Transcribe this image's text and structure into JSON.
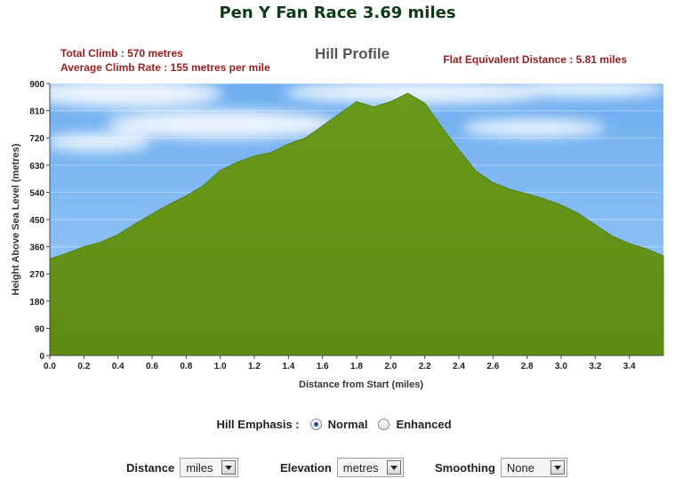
{
  "page_title": "Pen Y Fan Race 3.69 miles",
  "stats": {
    "total_climb": "Total Climb : 570 metres",
    "average_climb_rate": "Average Climb Rate : 155 metres per mile",
    "flat_equivalent": "Flat Equivalent Distance : 5.81 miles"
  },
  "colors": {
    "terrain": "#6a9a1c",
    "sky": "#86bff5",
    "stats_text": "#9b1d1d",
    "title": "#0c3b14"
  },
  "chart_data": {
    "type": "area",
    "title": "Hill Profile",
    "xlabel": "Distance from Start (miles)",
    "ylabel": "Height Above Sea Level (metres)",
    "xlim": [
      0,
      3.6
    ],
    "ylim": [
      0,
      900
    ],
    "x_ticks": [
      "0.0",
      "0.2",
      "0.4",
      "0.6",
      "0.8",
      "1.0",
      "1.2",
      "1.4",
      "1.6",
      "1.8",
      "2.0",
      "2.2",
      "2.4",
      "2.6",
      "2.8",
      "3.0",
      "3.2",
      "3.4"
    ],
    "y_ticks": [
      "0",
      "90",
      "180",
      "270",
      "360",
      "450",
      "540",
      "630",
      "720",
      "810",
      "900"
    ],
    "grid": true,
    "x": [
      0.0,
      0.1,
      0.2,
      0.3,
      0.4,
      0.5,
      0.6,
      0.7,
      0.8,
      0.9,
      1.0,
      1.1,
      1.2,
      1.3,
      1.4,
      1.5,
      1.6,
      1.7,
      1.8,
      1.9,
      2.0,
      2.1,
      2.2,
      2.3,
      2.4,
      2.5,
      2.6,
      2.7,
      2.8,
      2.9,
      3.0,
      3.1,
      3.2,
      3.3,
      3.4,
      3.5,
      3.6
    ],
    "values": [
      320,
      338,
      360,
      375,
      400,
      435,
      468,
      500,
      528,
      562,
      612,
      640,
      660,
      672,
      700,
      720,
      760,
      800,
      840,
      822,
      840,
      868,
      835,
      755,
      680,
      610,
      572,
      550,
      535,
      518,
      498,
      470,
      432,
      395,
      370,
      353,
      330
    ]
  },
  "hill_emphasis": {
    "label": "Hill Emphasis :",
    "options": [
      "Normal",
      "Enhanced"
    ],
    "selected": "Normal"
  },
  "controls": {
    "distance": {
      "label": "Distance",
      "value": "miles"
    },
    "elevation": {
      "label": "Elevation",
      "value": "metres"
    },
    "smoothing": {
      "label": "Smoothing",
      "value": "None"
    }
  }
}
